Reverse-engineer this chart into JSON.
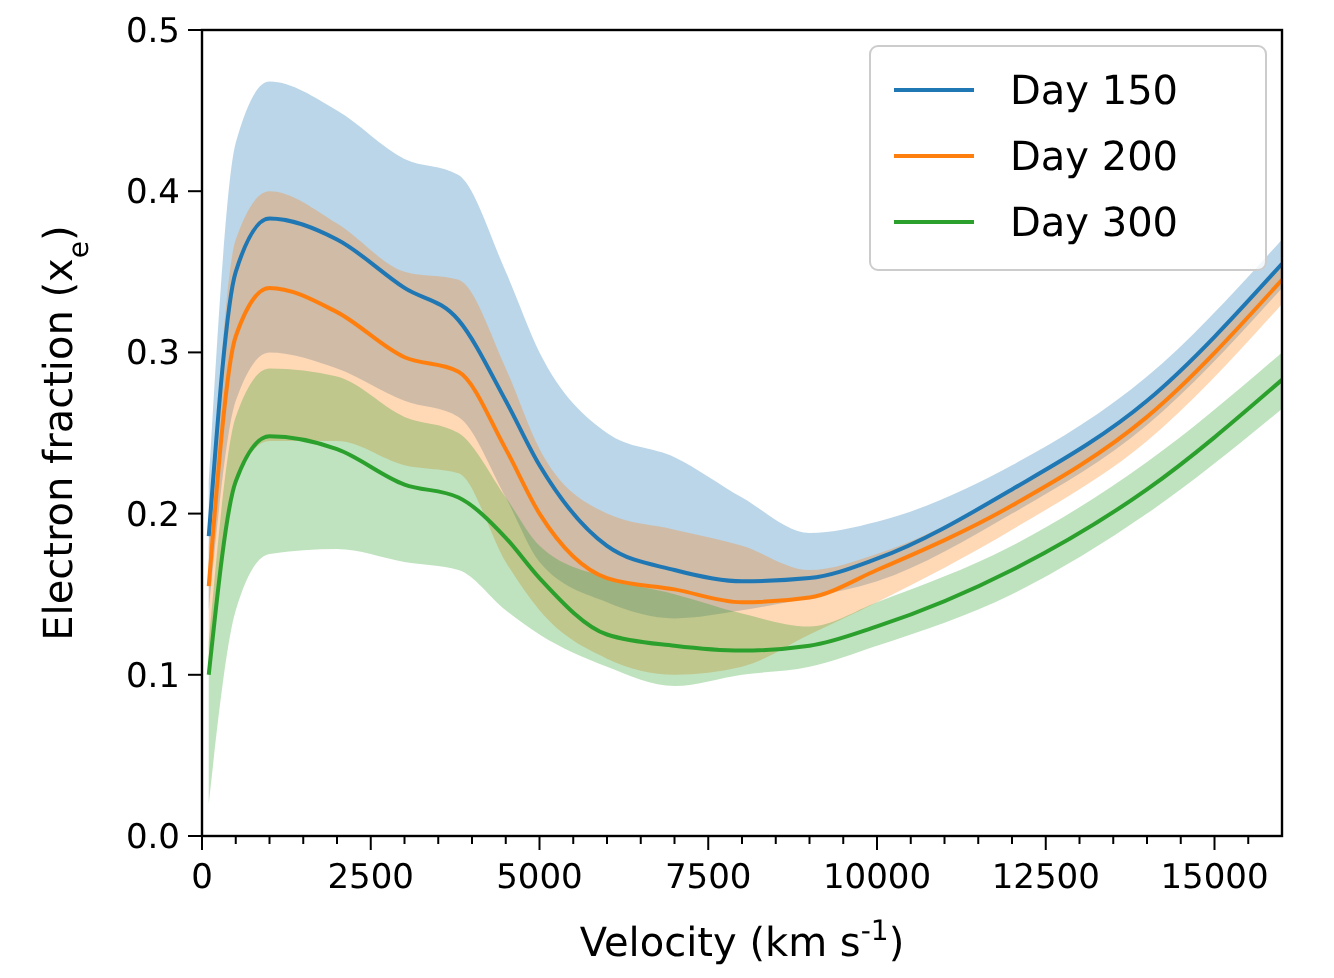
{
  "chart_data": {
    "type": "line",
    "xlabel": "Velocity (km s$^{-1}$)",
    "ylabel": "Electron fraction (x$_{e}$)",
    "x": [
      100,
      500,
      1000,
      2000,
      3000,
      3800,
      4500,
      5000,
      6000,
      7000,
      8000,
      9000,
      10000,
      12000,
      14000,
      16000
    ],
    "xlim": [
      0,
      16000
    ],
    "xticks": [
      0,
      {
        "value": 500,
        "label": null
      },
      {
        "value": 1000,
        "label": null
      },
      {
        "value": 1500,
        "label": null
      },
      {
        "value": 2000,
        "label": null
      },
      2500,
      {
        "value": 3000,
        "label": null
      },
      {
        "value": 3500,
        "label": null
      },
      {
        "value": 4000,
        "label": null
      },
      {
        "value": 4500,
        "label": null
      },
      5000,
      {
        "value": 5500,
        "label": null
      },
      {
        "value": 6000,
        "label": null
      },
      {
        "value": 6500,
        "label": null
      },
      {
        "value": 7000,
        "label": null
      },
      7500,
      {
        "value": 8000,
        "label": null
      },
      {
        "value": 8500,
        "label": null
      },
      {
        "value": 9000,
        "label": null
      },
      {
        "value": 9500,
        "label": null
      },
      10000,
      {
        "value": 10500,
        "label": null
      },
      {
        "value": 11000,
        "label": null
      },
      {
        "value": 11500,
        "label": null
      },
      {
        "value": 12000,
        "label": null
      },
      12500,
      {
        "value": 13000,
        "label": null
      },
      {
        "value": 13500,
        "label": null
      },
      {
        "value": 14000,
        "label": null
      },
      {
        "value": 14500,
        "label": null
      },
      15000,
      {
        "value": 15500,
        "label": null
      }
    ],
    "ylim": [
      0,
      0.5
    ],
    "yticks": [
      {
        "value": 0,
        "label": "0.0"
      },
      0.1,
      0.2,
      0.3,
      0.4,
      0.5
    ],
    "legend": "top right",
    "grid": false,
    "line_style": "solid",
    "series": [
      {
        "name": "Day 150",
        "color": "#1f77b4",
        "values": [
          0.186,
          0.35,
          0.383,
          0.37,
          0.34,
          0.32,
          0.27,
          0.23,
          0.18,
          0.165,
          0.158,
          0.16,
          0.172,
          0.215,
          0.27,
          0.355
        ],
        "lower": [
          0.14,
          0.27,
          0.3,
          0.29,
          0.27,
          0.26,
          0.21,
          0.17,
          0.145,
          0.135,
          0.14,
          0.148,
          0.158,
          0.2,
          0.255,
          0.34
        ],
        "upper": [
          0.22,
          0.43,
          0.468,
          0.45,
          0.42,
          0.41,
          0.35,
          0.3,
          0.25,
          0.235,
          0.21,
          0.188,
          0.195,
          0.23,
          0.285,
          0.37
        ]
      },
      {
        "name": "Day 200",
        "color": "#ff7f0e",
        "values": [
          0.155,
          0.31,
          0.34,
          0.325,
          0.297,
          0.288,
          0.24,
          0.2,
          0.16,
          0.153,
          0.145,
          0.148,
          0.165,
          0.205,
          0.26,
          0.345
        ],
        "lower": [
          0.1,
          0.22,
          0.245,
          0.245,
          0.23,
          0.225,
          0.17,
          0.14,
          0.11,
          0.1,
          0.105,
          0.125,
          0.145,
          0.19,
          0.245,
          0.33
        ],
        "upper": [
          0.18,
          0.37,
          0.4,
          0.38,
          0.35,
          0.345,
          0.29,
          0.24,
          0.2,
          0.19,
          0.18,
          0.165,
          0.175,
          0.215,
          0.27,
          0.355
        ]
      },
      {
        "name": "Day 300",
        "color": "#2ca02c",
        "values": [
          0.1,
          0.22,
          0.248,
          0.24,
          0.218,
          0.21,
          0.185,
          0.16,
          0.125,
          0.118,
          0.115,
          0.118,
          0.13,
          0.165,
          0.215,
          0.283
        ],
        "lower": [
          0.02,
          0.14,
          0.175,
          0.178,
          0.17,
          0.165,
          0.14,
          0.125,
          0.105,
          0.093,
          0.1,
          0.105,
          0.118,
          0.15,
          0.2,
          0.265
        ],
        "upper": [
          0.12,
          0.26,
          0.29,
          0.285,
          0.26,
          0.25,
          0.21,
          0.18,
          0.16,
          0.15,
          0.138,
          0.13,
          0.145,
          0.18,
          0.232,
          0.3
        ]
      }
    ]
  }
}
